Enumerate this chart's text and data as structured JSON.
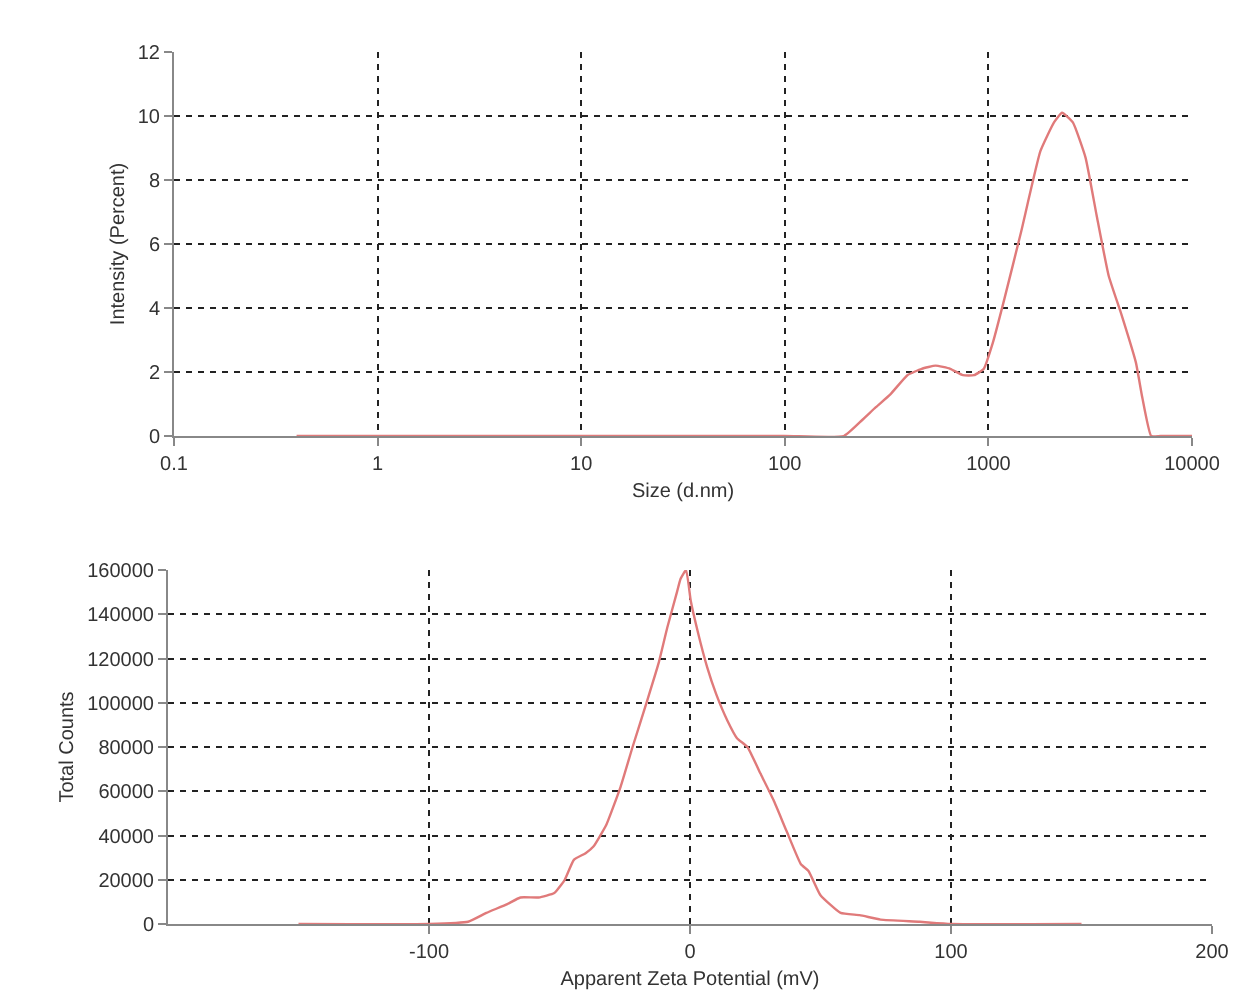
{
  "chart_data": [
    {
      "type": "line",
      "xlabel": "Size (d.nm)",
      "ylabel": "Intensity (Percent)",
      "log": "x",
      "grid": true,
      "marker": "none",
      "line_style": "solid",
      "xlim": [
        0.1,
        10000
      ],
      "xticks": [
        0.1,
        1,
        10,
        100,
        1000,
        10000
      ],
      "ylim": [
        0,
        12
      ],
      "yticks": [
        0,
        2,
        4,
        6,
        8,
        10,
        12
      ],
      "series": [
        {
          "color": "#e07a7a",
          "x": [
            0.4,
            1,
            10,
            100,
            195,
            240,
            280,
            330,
            400,
            470,
            550,
            650,
            750,
            850,
            950,
            1050,
            1200,
            1450,
            1800,
            2100,
            2300,
            2600,
            3000,
            3400,
            3900,
            4500,
            5300,
            5700,
            6300,
            7000,
            10000
          ],
          "values": [
            0,
            0,
            0,
            0,
            0,
            0.5,
            0.9,
            1.3,
            1.9,
            2.1,
            2.2,
            2.1,
            1.9,
            1.9,
            2.1,
            2.9,
            4.3,
            6.4,
            8.9,
            9.8,
            10.1,
            9.8,
            8.7,
            6.9,
            5.0,
            3.8,
            2.3,
            1.2,
            0,
            0,
            0
          ]
        }
      ]
    },
    {
      "type": "line",
      "xlabel": "Apparent Zeta Potential (mV)",
      "ylabel": "Total Counts",
      "grid": true,
      "marker": "none",
      "line_style": "solid",
      "xlim": [
        -200,
        200
      ],
      "xticks": [
        -100,
        0,
        100,
        200
      ],
      "ylim": [
        0,
        160000
      ],
      "yticks": [
        0,
        20000,
        40000,
        60000,
        80000,
        100000,
        120000,
        140000,
        160000
      ],
      "series": [
        {
          "color": "#e07a7a",
          "x": [
            -150,
            -100,
            -85,
            -78,
            -70,
            -65,
            -58,
            -52,
            -48,
            -44.5,
            -40,
            -37,
            -32,
            -26.6,
            -22,
            -16.4,
            -12,
            -8.7,
            -5,
            -3.6,
            -1.5,
            0.3,
            3,
            6.6,
            10,
            14.3,
            18,
            22,
            27,
            32,
            37,
            42.5,
            45.4,
            50,
            57.7,
            65,
            73,
            88,
            100,
            150
          ],
          "values": [
            0,
            0,
            1000,
            5000,
            9000,
            12000,
            12000,
            14000,
            20000,
            29000,
            32000,
            35000,
            45000,
            62000,
            80000,
            101000,
            118000,
            134000,
            150000,
            156000,
            160000,
            146000,
            132000,
            116000,
            104000,
            92000,
            84000,
            80000,
            68000,
            56000,
            42000,
            27000,
            24000,
            13000,
            5000,
            4000,
            2000,
            1000,
            0,
            0
          ]
        }
      ]
    }
  ]
}
